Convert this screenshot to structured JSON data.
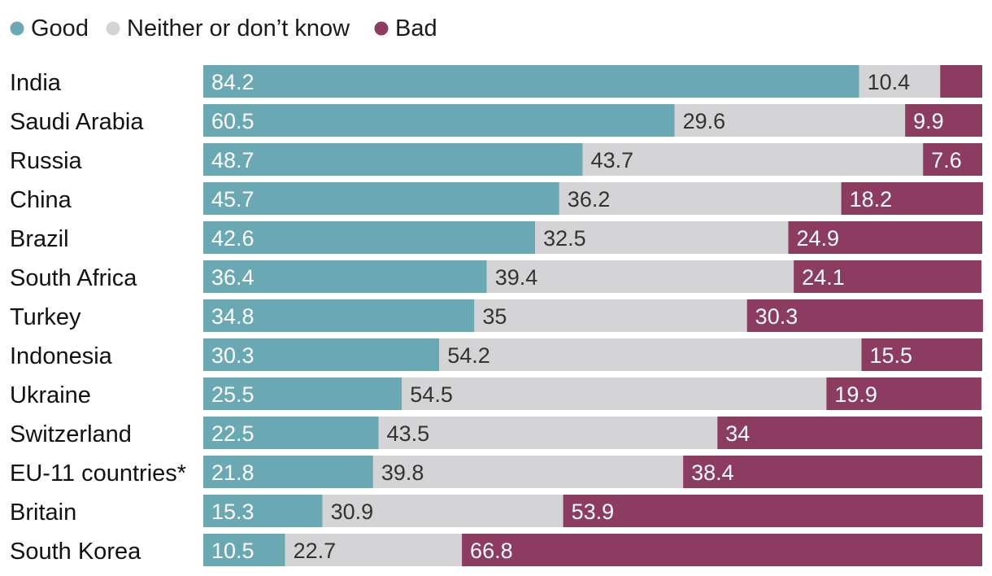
{
  "chart_data": {
    "type": "bar",
    "stacked": true,
    "orientation": "horizontal",
    "title": "",
    "xlabel": "",
    "ylabel": "",
    "xlim": [
      0,
      100
    ],
    "legend_position": "top-left",
    "categories": [
      "India",
      "Saudi Arabia",
      "Russia",
      "China",
      "Brazil",
      "South Africa",
      "Turkey",
      "Indonesia",
      "Ukraine",
      "Switzerland",
      "EU-11 countries*",
      "Britain",
      "South Korea"
    ],
    "series": [
      {
        "name": "Good",
        "color": "#6aa8b3",
        "label_color": "#ffffff",
        "values": [
          84.2,
          60.5,
          48.7,
          45.7,
          42.6,
          36.4,
          34.8,
          30.3,
          25.5,
          22.5,
          21.8,
          15.3,
          10.5
        ]
      },
      {
        "name": "Neither or don’t know",
        "color": "#d4d4d6",
        "label_color": "#333333",
        "values": [
          10.4,
          29.6,
          43.7,
          36.2,
          32.5,
          39.4,
          35,
          54.2,
          54.5,
          43.5,
          39.8,
          30.9,
          22.7
        ]
      },
      {
        "name": "Bad",
        "color": "#8b3c60",
        "label_color": "#ffffff",
        "values": [
          5.4,
          9.9,
          7.6,
          18.2,
          24.9,
          24.1,
          30.3,
          15.5,
          19.9,
          34,
          38.4,
          53.9,
          66.8
        ],
        "labels": [
          "",
          "9.9",
          "7.6",
          "18.2",
          "24.9",
          "24.1",
          "30.3",
          "15.5",
          "19.9",
          "34",
          "38.4",
          "53.9",
          "66.8"
        ]
      }
    ]
  }
}
